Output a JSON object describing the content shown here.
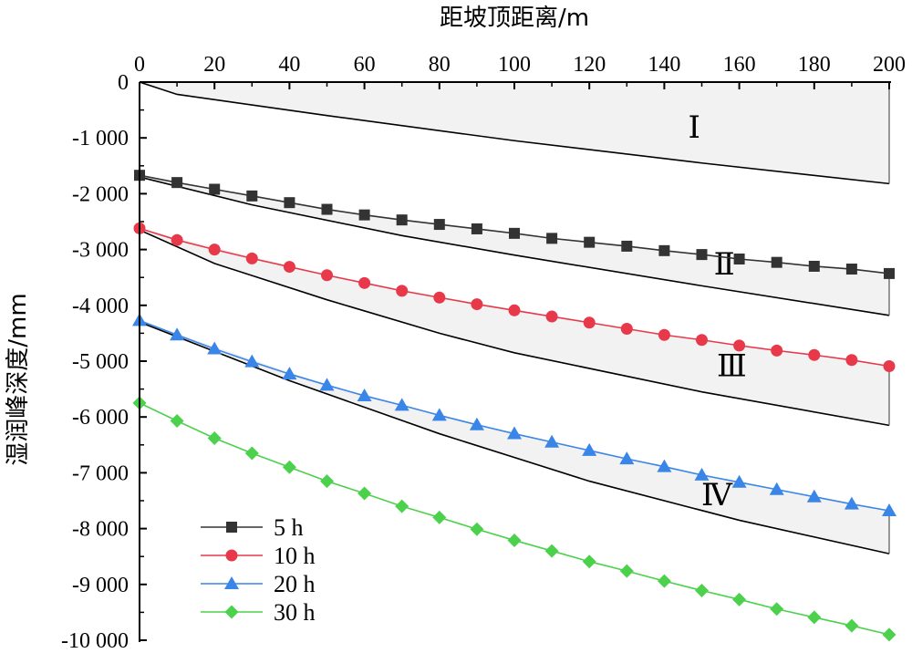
{
  "chart_data": {
    "type": "line",
    "xlabel": "距坡顶距离/m",
    "ylabel": "湿润峰深度/mm",
    "xlim": [
      0,
      200
    ],
    "ylim": [
      -10000,
      0
    ],
    "x_axis_position": "top",
    "x_ticks": [
      0,
      20,
      40,
      60,
      80,
      100,
      120,
      140,
      160,
      180,
      200
    ],
    "x_tick_labels": [
      "0",
      "20",
      "40",
      "60",
      "80",
      "100",
      "120",
      "140",
      "160",
      "180",
      "200"
    ],
    "y_ticks": [
      0,
      -1000,
      -2000,
      -3000,
      -4000,
      -5000,
      -6000,
      -7000,
      -8000,
      -9000,
      -10000
    ],
    "y_tick_labels": [
      "0",
      "-1 000",
      "-2 000",
      "-3 000",
      "-4 000",
      "-5 000",
      "-6 000",
      "-7 000",
      "-8 000",
      "-9 000",
      "-10 000"
    ],
    "grid": false,
    "legend_position": "bottom-left",
    "x": [
      0,
      10,
      20,
      30,
      40,
      50,
      60,
      70,
      80,
      90,
      100,
      110,
      120,
      130,
      140,
      150,
      160,
      170,
      180,
      190,
      200
    ],
    "series": [
      {
        "name": "5 h",
        "marker": "square",
        "color": "#333333",
        "values": [
          -1670,
          -1800,
          -1920,
          -2040,
          -2160,
          -2280,
          -2380,
          -2470,
          -2550,
          -2630,
          -2710,
          -2800,
          -2870,
          -2940,
          -3020,
          -3090,
          -3170,
          -3230,
          -3300,
          -3350,
          -3430
        ]
      },
      {
        "name": "10 h",
        "marker": "circle",
        "color": "#e8394b",
        "values": [
          -2620,
          -2830,
          -3000,
          -3160,
          -3310,
          -3460,
          -3600,
          -3740,
          -3860,
          -3980,
          -4090,
          -4200,
          -4310,
          -4420,
          -4530,
          -4620,
          -4720,
          -4810,
          -4890,
          -4980,
          -5090
        ]
      },
      {
        "name": "20 h",
        "marker": "triangle",
        "color": "#3a86e8",
        "values": [
          -4270,
          -4530,
          -4780,
          -5010,
          -5230,
          -5430,
          -5620,
          -5790,
          -5970,
          -6140,
          -6300,
          -6450,
          -6600,
          -6750,
          -6890,
          -7040,
          -7170,
          -7300,
          -7430,
          -7560,
          -7680
        ]
      },
      {
        "name": "30 h",
        "marker": "diamond",
        "color": "#4cd14c",
        "values": [
          -5750,
          -6070,
          -6380,
          -6650,
          -6900,
          -7150,
          -7370,
          -7600,
          -7800,
          -8010,
          -8210,
          -8400,
          -8590,
          -8760,
          -8940,
          -9110,
          -9270,
          -9440,
          -9590,
          -9740,
          -9900
        ]
      }
    ],
    "zones": [
      {
        "label": "Ⅰ",
        "upper": {
          "x": [
            0,
            200
          ],
          "y": [
            0,
            0
          ]
        },
        "lower": {
          "x": [
            0,
            10,
            50,
            100,
            150,
            200
          ],
          "y": [
            0,
            -220,
            -600,
            -1050,
            -1450,
            -1820
          ]
        },
        "label_at": [
          148,
          -1000
        ]
      },
      {
        "label": "Ⅱ",
        "upper": {
          "x": [
            0,
            50,
            100,
            150,
            200
          ],
          "y": [
            -1670,
            -2280,
            -2710,
            -3090,
            -3430
          ]
        },
        "lower": {
          "x": [
            0,
            30,
            70,
            100,
            150,
            200
          ],
          "y": [
            -1700,
            -2200,
            -2750,
            -3100,
            -3650,
            -4180
          ]
        },
        "label_at": [
          156,
          -3450
        ]
      },
      {
        "label": "Ⅲ",
        "upper": {
          "x": [
            0,
            50,
            100,
            150,
            200
          ],
          "y": [
            -2620,
            -3460,
            -4090,
            -4620,
            -5090
          ]
        },
        "lower": {
          "x": [
            0,
            20,
            50,
            80,
            100,
            150,
            200
          ],
          "y": [
            -2650,
            -3250,
            -3900,
            -4500,
            -4850,
            -5550,
            -6150
          ]
        },
        "label_at": [
          158,
          -5270
        ]
      },
      {
        "label": "Ⅳ",
        "upper": {
          "x": [
            0,
            50,
            100,
            150,
            200
          ],
          "y": [
            -4270,
            -5430,
            -6300,
            -7040,
            -7680
          ]
        },
        "lower": {
          "x": [
            0,
            40,
            80,
            120,
            160,
            200
          ],
          "y": [
            -4300,
            -5350,
            -6300,
            -7150,
            -7850,
            -8450
          ]
        },
        "label_at": [
          154,
          -7580
        ]
      }
    ],
    "zone_bottom_marks": [
      {
        "x": 200,
        "y": -7720
      }
    ],
    "colors": {
      "axis": "#000000",
      "zone_fill": "#f2f2f2",
      "zone_edge": "#000000"
    }
  }
}
